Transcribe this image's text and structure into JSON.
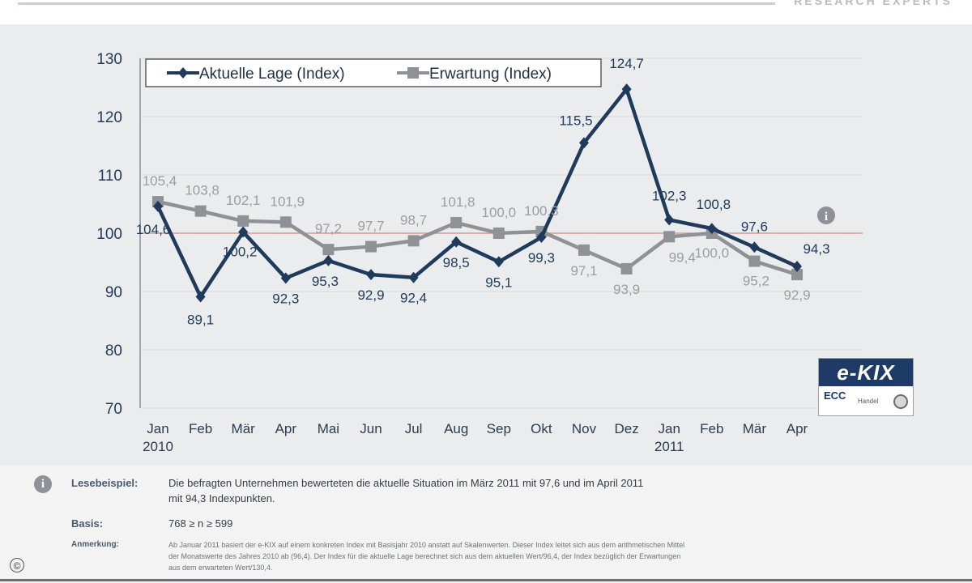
{
  "header": {
    "brand_text": "RESEARCH EXPERTS"
  },
  "colors": {
    "actual": "#1f3a5a",
    "expectation": "#8e9196",
    "reference_line": "#d79a90",
    "grid": "#d6d8db",
    "legend_border": "#3a3a3a"
  },
  "chart_data": {
    "type": "line",
    "title": "",
    "xlabel": "",
    "ylabel": "",
    "ylim": [
      70,
      130
    ],
    "yticks": [
      70,
      80,
      90,
      100,
      110,
      120,
      130
    ],
    "ytick_labels": [
      "70",
      "80",
      "90",
      "100",
      "110",
      "120",
      "130"
    ],
    "grid": true,
    "legend_position": "top-left",
    "reference_line": 100,
    "categories": [
      "Jan",
      "Feb",
      "Mär",
      "Apr",
      "Mai",
      "Jun",
      "Jul",
      "Aug",
      "Sep",
      "Okt",
      "Nov",
      "Dez",
      "Jan",
      "Feb",
      "Mär",
      "Apr"
    ],
    "year_labels": [
      "2010",
      "",
      "",
      "",
      "",
      "",
      "",
      "",
      "",
      "",
      "",
      "",
      "2011",
      "",
      "",
      ""
    ],
    "series": [
      {
        "name": "Aktuelle Lage (Index)",
        "values": [
          104.6,
          89.1,
          100.2,
          92.3,
          95.3,
          92.9,
          92.4,
          98.5,
          95.1,
          99.3,
          115.5,
          124.7,
          102.3,
          100.8,
          97.6,
          94.3
        ],
        "labels": [
          "104,6",
          "89,1",
          "100,2",
          "92,3",
          "95,3",
          "92,9",
          "92,4",
          "98,5",
          "95,1",
          "99,3",
          "115,5",
          "124,7",
          "102,3",
          "100,8",
          "97,6",
          "94,3"
        ],
        "marker": "diamond"
      },
      {
        "name": "Erwartung (Index)",
        "values": [
          105.4,
          103.8,
          102.1,
          101.9,
          97.2,
          97.7,
          98.7,
          101.8,
          100.0,
          100.3,
          97.1,
          93.9,
          99.4,
          100.0,
          95.2,
          92.9
        ],
        "labels": [
          "105,4",
          "103,8",
          "102,1",
          "101,9",
          "97,2",
          "97,7",
          "98,7",
          "101,8",
          "100,0",
          "100,3",
          "97,1",
          "93,9",
          "99,4",
          "100,0",
          "95,2",
          "92,9"
        ],
        "marker": "square"
      }
    ]
  },
  "logo": {
    "name": "e-KIX",
    "ecc_text": "ECC",
    "sub_text": "Handel"
  },
  "info_icon_glyph": "i",
  "footnotes": {
    "reading_example_label": "Lesebeispiel:",
    "reading_example_text_1": "Die befragten Unternehmen bewerteten die aktuelle Situation im März 2011 mit 97,6 und im April 2011",
    "reading_example_text_2": "mit 94,3 Indexpunkten.",
    "basis_label": "Basis:",
    "basis_text": "768 ≥ n ≥ 599",
    "note_label": "Anmerkung:",
    "note_text_1": "Ab Januar 2011 basiert der e-KIX auf einem konkreten Index mit Basisjahr 2010 anstatt auf Skalenwerten. Dieser Index leitet sich aus dem arithmetischen Mittel",
    "note_text_2": "der Monatswerte des Jahres 2010 ab (96,4). Der Index für die aktuelle Lage berechnet sich aus dem aktuellen Wert/96,4, der Index bezüglich der Erwartungen",
    "note_text_3": "aus dem erwarteten Wert/130,4.",
    "copyright_glyph": "©"
  }
}
